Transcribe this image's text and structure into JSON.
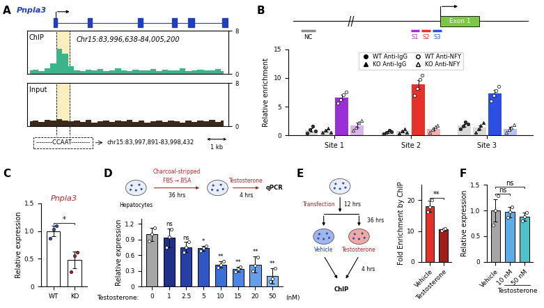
{
  "chart_data": [
    {
      "panel": "A",
      "type": "area",
      "title": "Pnpla3",
      "subtitle": "Chr15:83,996,638-84,005,200",
      "x": [
        83996750,
        83997000,
        83997250,
        83997500,
        83997750,
        83998000,
        83998250,
        83998500,
        83998750,
        83999000,
        83999250,
        83999500,
        83999750,
        84000000,
        84000250,
        84000500,
        84000750,
        84001000,
        84001250,
        84001500,
        84001750,
        84002000,
        84002250,
        84002500,
        84002750,
        84003000,
        84003250,
        84003500,
        84003750,
        84004000,
        84004250,
        84004500,
        84004750,
        84005000
      ],
      "series": [
        {
          "name": "ChIP",
          "color": "#3cb38a",
          "values": [
            0.6,
            0.8,
            0.5,
            1.0,
            2.0,
            4.6,
            3.8,
            1.4,
            0.7,
            0.5,
            0.8,
            0.6,
            0.9,
            0.5,
            0.7,
            1.0,
            0.6,
            0.5,
            0.8,
            0.7,
            0.6,
            0.9,
            0.5,
            0.8,
            0.6,
            0.7,
            1.0,
            0.5,
            0.6,
            0.8,
            0.7,
            0.6,
            0.9,
            0.5
          ]
        },
        {
          "name": "Input",
          "color": "#3b2a1a",
          "values": [
            0.9,
            1.1,
            0.8,
            1.2,
            1.0,
            1.3,
            1.1,
            0.9,
            1.0,
            0.8,
            1.2,
            0.7,
            0.9,
            1.1,
            0.8,
            1.0,
            0.9,
            1.2,
            0.8,
            1.0,
            0.7,
            0.9,
            1.1,
            0.8,
            1.0,
            0.9,
            0.7,
            1.1,
            0.8,
            1.0,
            0.9,
            1.2,
            0.8,
            1.0
          ]
        }
      ],
      "xlim": [
        83996638,
        84005200
      ],
      "ylim": [
        0,
        8
      ],
      "yticks": [
        0,
        8
      ],
      "tick_labels": "y",
      "highlight": {
        "start": 83997891,
        "end": 83998432,
        "motif": "--------CCAAT---------",
        "label": "chr15:83,997,891-83,998,432"
      },
      "scale_bar": {
        "length": 1000,
        "label": "1 kb"
      }
    },
    {
      "panel": "B",
      "type": "bar",
      "categories": [
        "Site 1",
        "Site 2",
        "Site 3"
      ],
      "ylabel": "Relative enrichment",
      "ylim": [
        0,
        15
      ],
      "yticks": [
        0,
        5,
        10,
        15
      ],
      "legend": "upper center",
      "diagram": {
        "control": "NC",
        "sites": [
          "S1",
          "S2",
          "S3"
        ],
        "exon": "Exon 1"
      },
      "series": [
        {
          "name": "WT Anti-IgG",
          "marker": "circle",
          "color": "#d9d9d9",
          "values": [
            0.95,
            0.6,
            1.8
          ],
          "errors": [
            0.3,
            0.15,
            0.25
          ],
          "points": [
            [
              0.4,
              1.0,
              1.6,
              0.8
            ],
            [
              0.3,
              0.5,
              0.9,
              0.7
            ],
            [
              1.2,
              1.6,
              2.4,
              2.0
            ]
          ]
        },
        {
          "name": "KO Anti-IgG",
          "marker": "triangle",
          "color": "#d9d9d9",
          "values": [
            0.83,
            0.75,
            1.43
          ],
          "errors": [
            0.17,
            0.17,
            0.35
          ],
          "points": [
            [
              0.5,
              0.9,
              1.3,
              0.6
            ],
            [
              0.4,
              0.8,
              1.2,
              0.6
            ],
            [
              0.6,
              1.1,
              1.8,
              2.2
            ]
          ]
        },
        {
          "name": "WT Anti-NFY",
          "marker": "open circle",
          "colors": [
            "#9a2fd6",
            "#e8302a",
            "#2c4fe3"
          ],
          "values": [
            6.63,
            8.88,
            7.35
          ],
          "errors": [
            0.45,
            0.8,
            0.55
          ],
          "points": [
            [
              5.6,
              6.2,
              7.1,
              7.6
            ],
            [
              7.0,
              8.2,
              9.8,
              10.5
            ],
            [
              6.0,
              7.0,
              7.8,
              8.6
            ]
          ]
        },
        {
          "name": "KO Anti-NFY",
          "marker": "open triangle",
          "colors": [
            "#d9b3ee",
            "#f4b0ac",
            "#b4c2f4"
          ],
          "values": [
            1.78,
            1.2,
            1.2
          ],
          "errors": [
            0.4,
            0.25,
            0.3
          ],
          "points": [
            [
              0.9,
              1.4,
              2.2,
              2.6
            ],
            [
              0.6,
              1.0,
              1.5,
              1.7
            ],
            [
              0.5,
              1.0,
              1.4,
              1.9
            ]
          ]
        }
      ]
    },
    {
      "panel": "C",
      "type": "bar",
      "title": "Pnpla3",
      "categories": [
        "WT",
        "KO"
      ],
      "values": [
        1.0,
        0.48
      ],
      "errors": [
        0.09,
        0.15
      ],
      "points": [
        [
          0.87,
          1.03,
          1.1
        ],
        [
          0.27,
          0.55,
          0.62
        ]
      ],
      "colors": [
        "#2b50c8",
        "#b3262a"
      ],
      "ylabel": "Relative expression",
      "ylim": [
        0,
        1.5
      ],
      "yticks": [
        0,
        0.5,
        {
          "value": 1,
          "label": "1.0"
        },
        1.5
      ],
      "comparisons": [
        {
          "pair": [
            0,
            1
          ],
          "label": "*"
        }
      ]
    },
    {
      "panel": "D",
      "type": "bar",
      "categories": [
        "0",
        "1",
        "2.5",
        "5",
        "10",
        "15",
        "20",
        "50"
      ],
      "values": [
        1.0,
        0.93,
        0.75,
        0.73,
        0.42,
        0.33,
        0.42,
        0.2
      ],
      "errors": [
        0.13,
        0.18,
        0.1,
        0.05,
        0.06,
        0.05,
        0.15,
        0.15
      ],
      "points": [
        [
          0.87,
          1.0,
          1.13
        ],
        [
          0.75,
          0.95,
          1.1
        ],
        [
          0.65,
          0.75,
          0.85
        ],
        [
          0.68,
          0.73,
          0.78
        ],
        [
          0.36,
          0.42,
          0.48
        ],
        [
          0.28,
          0.33,
          0.38
        ],
        [
          0.3,
          0.4,
          0.56
        ],
        [
          0.1,
          0.15,
          0.35
        ]
      ],
      "colors": [
        "#a6a6a6",
        "#1f2f8c",
        "#253fa8",
        "#2f56c4",
        "#3a6fd8",
        "#4a86e6",
        "#62a0ef",
        "#7dbdf5"
      ],
      "bar_labels": [
        null,
        "ns",
        "ns",
        "*",
        "**",
        "**",
        "**",
        "**"
      ],
      "xlabel": "Testosterone:",
      "x_unit": "(nM)",
      "ylabel": "Relative expression",
      "ylim": [
        0,
        1.3
      ],
      "yticks": [
        0,
        0.3,
        0.6,
        0.9,
        1.2
      ],
      "protocol": {
        "cells": "Hepatocytes",
        "medium_1": "Charcoal-stripped",
        "medium_2": "FBS → BSA",
        "time_1": "36 hrs",
        "treatment": "Testosterone",
        "time_2": "4 hrs",
        "readout": "qPCR"
      }
    },
    {
      "panel": "E",
      "type": "bar",
      "categories": [
        "Vehicle",
        "Testosterone"
      ],
      "values": [
        18.0,
        10.5
      ],
      "errors": [
        1.8,
        0.35
      ],
      "points": [
        [
          16.2,
          17.9,
          20.1
        ],
        [
          10.1,
          10.6,
          10.9
        ]
      ],
      "colors": [
        "#e8302a",
        "#a31d17"
      ],
      "ylabel": "Fold Enrichment by ChIP",
      "ylim": [
        0,
        25
      ],
      "yticks": [
        0,
        10,
        20
      ],
      "comparisons": [
        {
          "pair": [
            0,
            1
          ],
          "label": "**"
        }
      ],
      "protocol": {
        "step_1": "Transfection",
        "time_1": "12 hrs",
        "time_2": "36 hrs",
        "arm_1": "Vehicle",
        "arm_2": "Testosterone",
        "time_3": "4 hrs",
        "readout": "ChIP"
      }
    },
    {
      "panel": "F",
      "type": "bar",
      "categories": [
        "Vehicle",
        "10 nM",
        "50 nM"
      ],
      "values": [
        1.0,
        0.97,
        0.88
      ],
      "errors": [
        0.22,
        0.1,
        0.08
      ],
      "points": [
        [
          0.72,
          1.0,
          1.28
        ],
        [
          0.87,
          0.97,
          1.07
        ],
        [
          0.8,
          0.88,
          0.96
        ]
      ],
      "colors": [
        "#a6a6a6",
        "#5aaee8",
        "#4cc3c8"
      ],
      "xlabel": "Testosterone",
      "ylabel": "Relative expression",
      "ylim": [
        0,
        1.5
      ],
      "yticks": [
        0,
        0.5,
        {
          "value": 1,
          "label": "1.0"
        },
        1.5
      ],
      "comparisons": [
        {
          "pair": [
            0,
            1
          ],
          "label": "ns"
        },
        {
          "pair": [
            0,
            2
          ],
          "label": "ns"
        }
      ]
    }
  ]
}
